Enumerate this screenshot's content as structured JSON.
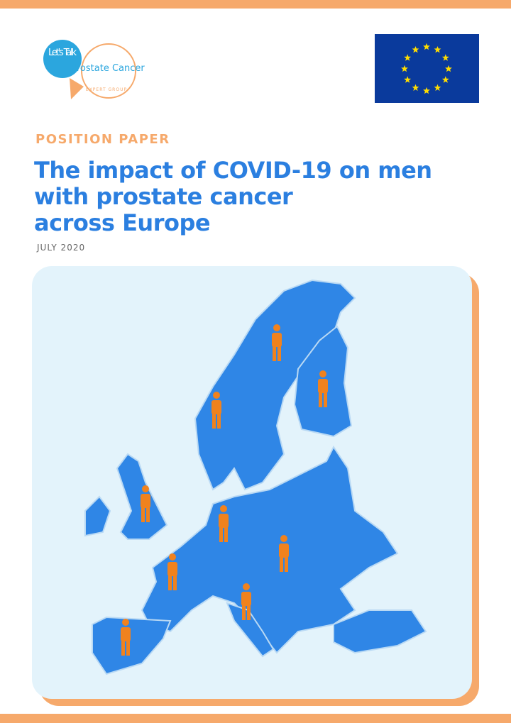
{
  "logo": {
    "bubble": "Let's Talk",
    "name": "Prostate Cancer",
    "tagline": "EXPERT GROUP"
  },
  "kicker": "POSITION PAPER",
  "title": [
    "The impact of COVID-19 on men",
    "with prostate cancer",
    "across Europe"
  ],
  "date": "JULY 2020"
}
